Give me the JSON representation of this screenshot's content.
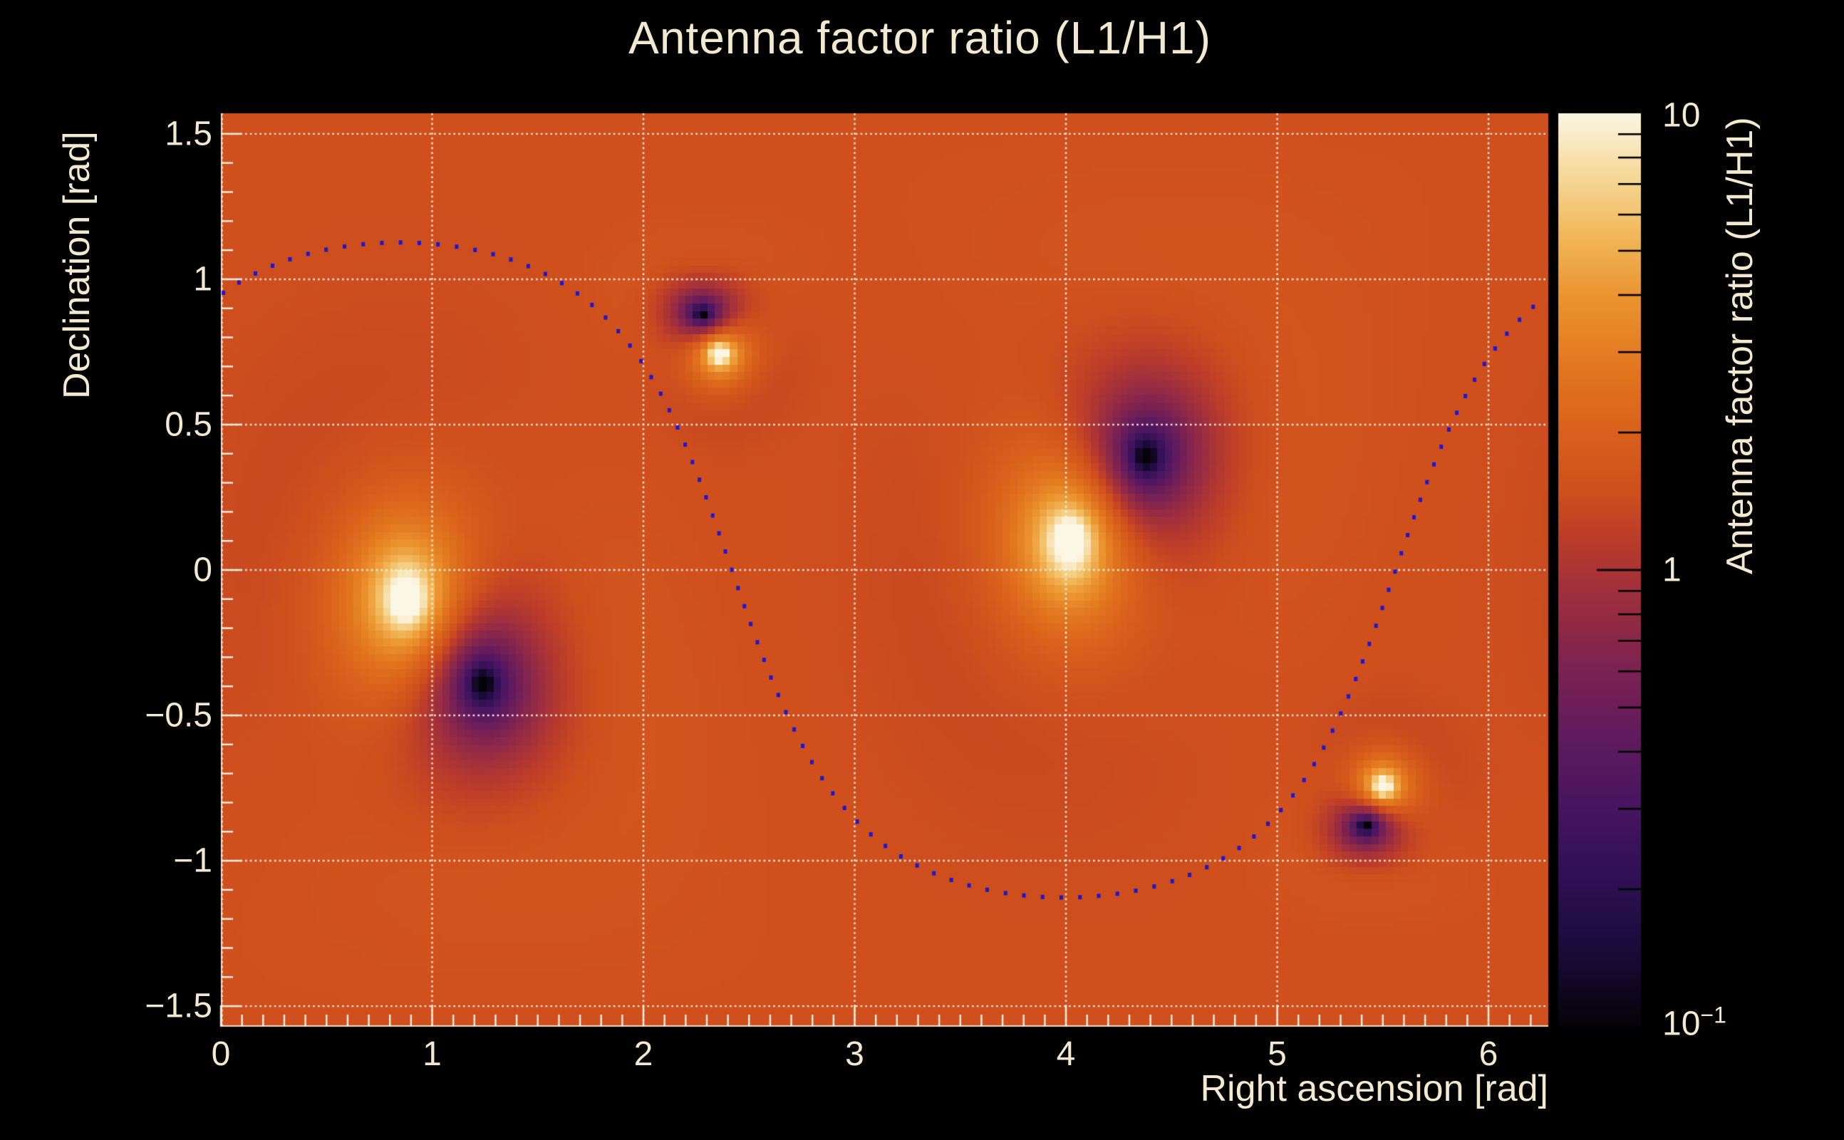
{
  "chart_data": {
    "type": "heatmap",
    "title": "Antenna factor ratio (L1/H1)",
    "xlabel": "Right ascension [rad]",
    "ylabel": "Declination [rad]",
    "x_range": [
      0,
      6.2832
    ],
    "y_range": [
      -1.5708,
      1.5708
    ],
    "x_ticks": [
      0,
      1,
      2,
      3,
      4,
      5,
      6
    ],
    "x_tick_labels": [
      "0",
      "1",
      "2",
      "3",
      "4",
      "5",
      "6"
    ],
    "y_ticks": [
      1.5,
      1.0,
      0.5,
      0.0,
      -0.5,
      -1.0,
      -1.5
    ],
    "y_tick_labels": [
      "1.5",
      "1",
      "0.5",
      "0",
      "−0.5",
      "−1",
      "−1.5"
    ],
    "minor_tick_step": 0.1,
    "grid": "dotted white lines at major ticks, on",
    "legend_position": "none",
    "value_scale": "log10",
    "value_range": [
      0.1,
      10
    ],
    "background_ratio": 1.48,
    "bins": {
      "nx": 180,
      "ny": 120
    },
    "colorbar": {
      "label": "Antenna factor ratio (L1/H1)",
      "scale": "log10",
      "tick_values": [
        10,
        1,
        0.1
      ],
      "tick_labels": [
        {
          "base": "10",
          "exp": ""
        },
        {
          "base": "1",
          "exp": ""
        },
        {
          "base": "10",
          "exp": "−1"
        }
      ],
      "minor_ticks": "2–9 of each decade"
    },
    "features": [
      {
        "name": "ratio-maximum-1",
        "kind": "H1 antenna null (ratio saturates high, white)",
        "ra": 0.88,
        "dec": -0.1,
        "sign": 1,
        "r0": 0.5,
        "taper": 0.6
      },
      {
        "name": "ratio-maximum-2",
        "kind": "H1 antenna null (ratio saturates high, white)",
        "ra": 4.02,
        "dec": 0.1,
        "sign": 1,
        "r0": 0.5,
        "taper": 0.6
      },
      {
        "name": "ratio-maximum-3",
        "kind": "H1 antenna null (compact, white)",
        "ra": 2.36,
        "dec": 0.745,
        "sign": 1,
        "r0": 0.16,
        "taper": 0.2
      },
      {
        "name": "ratio-maximum-4",
        "kind": "H1 antenna null (compact, white)",
        "ra": 5.5,
        "dec": -0.745,
        "sign": 1,
        "r0": 0.16,
        "taper": 0.2
      },
      {
        "name": "ratio-minimum-1",
        "kind": "L1 antenna null (ratio saturates low, black)",
        "ra": 1.24,
        "dec": -0.39,
        "sign": -1,
        "r0": 0.45,
        "taper": 0.6
      },
      {
        "name": "ratio-minimum-2",
        "kind": "L1 antenna null (ratio saturates low, black)",
        "ra": 4.38,
        "dec": 0.39,
        "sign": -1,
        "r0": 0.45,
        "taper": 0.6
      },
      {
        "name": "ratio-minimum-3",
        "kind": "L1 antenna null (compact, black)",
        "ra": 2.28,
        "dec": 0.88,
        "sign": -1,
        "r0": 0.16,
        "taper": 0.2
      },
      {
        "name": "ratio-minimum-4",
        "kind": "L1 antenna null (compact, black)",
        "ra": 5.42,
        "dec": -0.88,
        "sign": -1,
        "r0": 0.16,
        "taper": 0.2
      }
    ],
    "overlay_curve": {
      "description": "track of small blue square markers, great-circle-like curve dec = atan(tan_i * sin(ra - node))",
      "tan_inclination": 2.1,
      "node_ra": 5.56,
      "peak_dec": 1.13,
      "marker": "filled square ~5 px",
      "marker_spacing_px": 26,
      "color": "#1b17d1"
    },
    "palette": {
      "name": "black-violet-purple-red-orange-gold-white (inferno-like with white top)",
      "anchors": [
        [
          0.0,
          "#050308"
        ],
        [
          0.08,
          "#190b38"
        ],
        [
          0.16,
          "#2f1054"
        ],
        [
          0.24,
          "#471561"
        ],
        [
          0.32,
          "#611b5d"
        ],
        [
          0.4,
          "#7f2350"
        ],
        [
          0.47,
          "#9d2e3f"
        ],
        [
          0.53,
          "#b93b2b"
        ],
        [
          0.585,
          "#cf4f1d"
        ],
        [
          0.65,
          "#d9611c"
        ],
        [
          0.72,
          "#e2761f"
        ],
        [
          0.8,
          "#eb9530"
        ],
        [
          0.87,
          "#f2b95c"
        ],
        [
          0.93,
          "#f6d897"
        ],
        [
          1.0,
          "#fcf6e4"
        ]
      ]
    },
    "colors": {
      "page_background": "#000000",
      "text": "#f2e9d0",
      "grid": "#fff8ec",
      "axis_ticks": "#f5efe2",
      "colorbar_ticks": "#000000",
      "marker_blue": "#1b17d1"
    }
  },
  "layout_note_values": {
    "x_axis_title_alignment": "right-aligned at plot edge",
    "colorbar_title_alignment": "top-aligned at colorbar top"
  }
}
